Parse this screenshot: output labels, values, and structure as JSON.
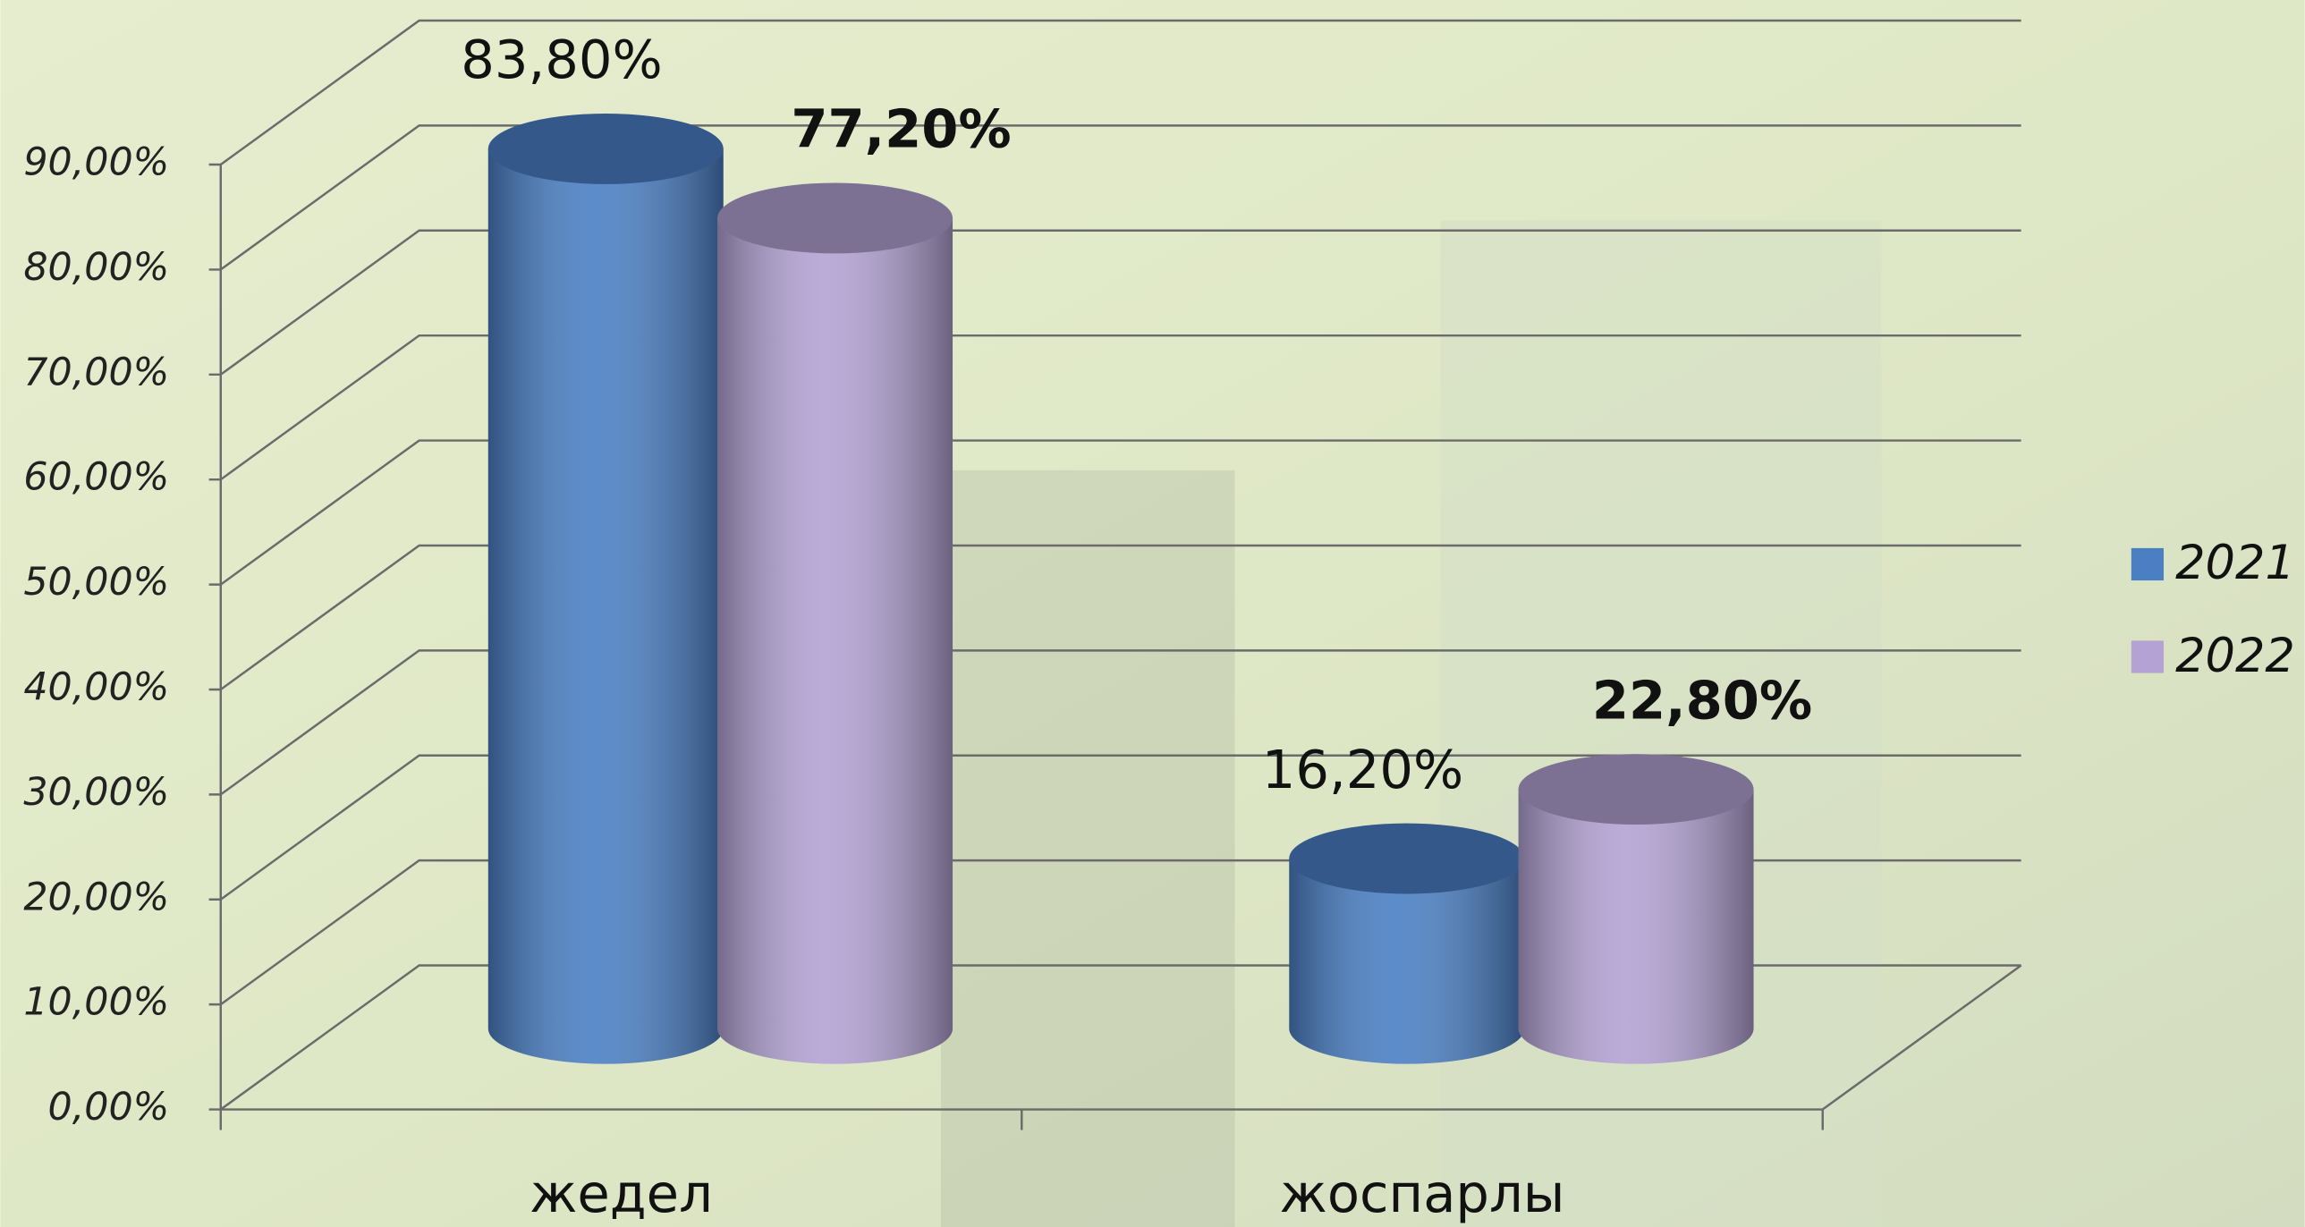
{
  "chart_data": {
    "type": "bar3d",
    "categories": [
      "жедел",
      "жоспарлы"
    ],
    "series": [
      {
        "name": "2021",
        "color": "#4a7fc4",
        "values": [
          83.8,
          16.2
        ],
        "value_labels": [
          "83,80%",
          "16,20%"
        ]
      },
      {
        "name": "2022",
        "color": "#b3a2d3",
        "values": [
          77.2,
          22.8
        ],
        "value_labels": [
          "77,20%",
          "22,80%"
        ]
      }
    ],
    "ylim": [
      0,
      90
    ],
    "yticks": [
      {
        "value": 0,
        "label": "0,00%"
      },
      {
        "value": 10,
        "label": "10,00%"
      },
      {
        "value": 20,
        "label": "20,00%"
      },
      {
        "value": 30,
        "label": "30,00%"
      },
      {
        "value": 40,
        "label": "40,00%"
      },
      {
        "value": 50,
        "label": "50,00%"
      },
      {
        "value": 60,
        "label": "60,00%"
      },
      {
        "value": 70,
        "label": "70,00%"
      },
      {
        "value": 80,
        "label": "80,00%"
      },
      {
        "value": 90,
        "label": "90,00%"
      }
    ],
    "grid": true,
    "legend": "right"
  }
}
